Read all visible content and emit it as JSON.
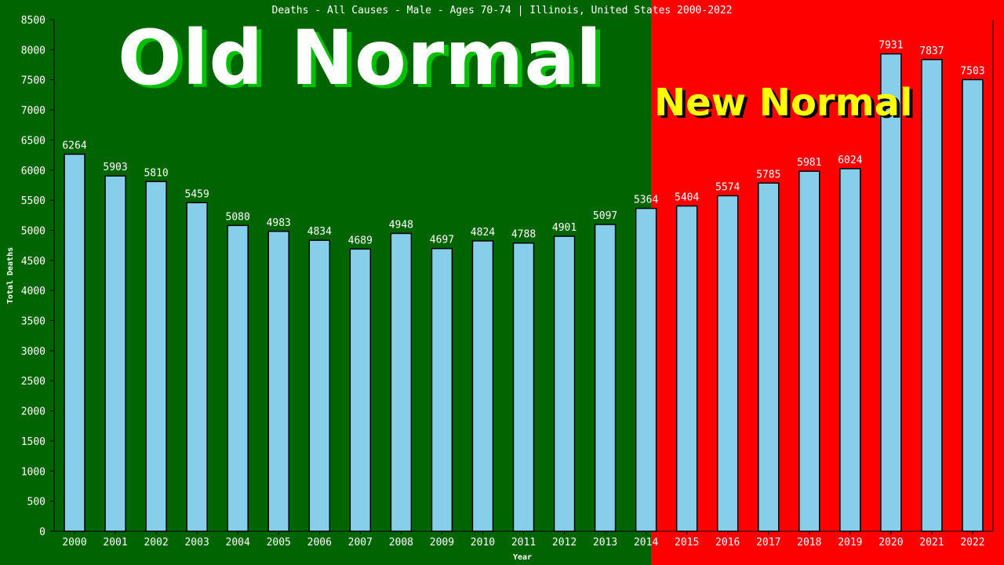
{
  "chart_data": {
    "type": "bar",
    "title": "Deaths - All Causes - Male - Ages 70-74 | Illinois, United States 2000-2022",
    "xlabel": "Year",
    "ylabel": "Total Deaths",
    "ylim": [
      0,
      8500
    ],
    "yticks": [
      0,
      500,
      1000,
      1500,
      2000,
      2500,
      3000,
      3500,
      4000,
      4500,
      5000,
      5500,
      6000,
      6500,
      7000,
      7500,
      8000,
      8500
    ],
    "categories": [
      "2000",
      "2001",
      "2002",
      "2003",
      "2004",
      "2005",
      "2006",
      "2007",
      "2008",
      "2009",
      "2010",
      "2011",
      "2012",
      "2013",
      "2014",
      "2015",
      "2016",
      "2017",
      "2018",
      "2019",
      "2020",
      "2021",
      "2022"
    ],
    "values": [
      6264,
      5903,
      5810,
      5459,
      5080,
      4983,
      4834,
      4689,
      4948,
      4697,
      4824,
      4788,
      4901,
      5097,
      5364,
      5404,
      5574,
      5785,
      5981,
      6024,
      7931,
      7837,
      7503
    ],
    "grid": false,
    "legend": "none",
    "annotations": {
      "old_period": "Old Normal",
      "new_period": "New Normal"
    },
    "colors": {
      "old_background": "#006400",
      "new_background": "#ff0000",
      "bar": "#87ceeb",
      "bar_edge": "#000000",
      "text": "#ffffff",
      "new_label": "#ffff00",
      "old_label": "#ffffff"
    }
  }
}
